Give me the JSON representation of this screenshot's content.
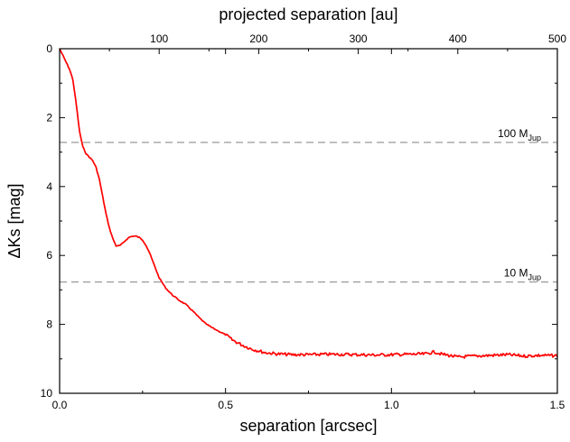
{
  "chart_data": {
    "type": "line",
    "title": "",
    "xlabel": "separation [arcsec]",
    "x2label": "projected separation [au]",
    "ylabel": "ΔKs [mag]",
    "xlim": [
      0,
      1.5
    ],
    "x2lim": [
      0,
      500
    ],
    "ylim": [
      0,
      10
    ],
    "y_inverted": true,
    "grid": false,
    "x_ticks": [
      "0.0",
      "0.5",
      "1.0",
      "1.5"
    ],
    "x2_ticks": [
      "100",
      "200",
      "300",
      "400",
      "500"
    ],
    "y_ticks": [
      "0",
      "2",
      "4",
      "6",
      "8",
      "10"
    ],
    "reference_lines": [
      {
        "y": 2.72,
        "label_main": "100 M",
        "label_sub": "Jup",
        "style": "dashed",
        "color": "#999999"
      },
      {
        "y": 6.77,
        "label_main": "10 M",
        "label_sub": "Jup",
        "style": "dashed",
        "color": "#999999"
      }
    ],
    "series": [
      {
        "color": "#ff0000",
        "x": [
          0.0,
          0.01,
          0.02,
          0.03,
          0.04,
          0.05,
          0.06,
          0.07,
          0.08,
          0.09,
          0.1,
          0.11,
          0.12,
          0.13,
          0.14,
          0.15,
          0.16,
          0.17,
          0.18,
          0.19,
          0.2,
          0.21,
          0.22,
          0.23,
          0.24,
          0.25,
          0.26,
          0.27,
          0.28,
          0.29,
          0.3,
          0.32,
          0.34,
          0.36,
          0.38,
          0.4,
          0.42,
          0.44,
          0.46,
          0.48,
          0.5,
          0.52,
          0.55,
          0.58,
          0.62,
          0.66,
          0.7,
          0.75,
          0.8,
          0.85,
          0.9,
          0.95,
          1.0,
          1.05,
          1.1,
          1.13,
          1.15,
          1.2,
          1.25,
          1.3,
          1.35,
          1.4,
          1.45,
          1.5
        ],
        "y": [
          0.0,
          0.2,
          0.4,
          0.6,
          0.9,
          1.6,
          2.4,
          2.85,
          3.05,
          3.15,
          3.25,
          3.45,
          3.8,
          4.3,
          4.8,
          5.2,
          5.5,
          5.72,
          5.72,
          5.65,
          5.55,
          5.47,
          5.44,
          5.44,
          5.48,
          5.55,
          5.7,
          5.9,
          6.15,
          6.4,
          6.65,
          6.95,
          7.15,
          7.3,
          7.42,
          7.6,
          7.8,
          7.98,
          8.1,
          8.2,
          8.3,
          8.45,
          8.6,
          8.72,
          8.82,
          8.86,
          8.88,
          8.88,
          8.87,
          8.87,
          8.88,
          8.89,
          8.88,
          8.87,
          8.86,
          8.8,
          8.86,
          8.95,
          8.92,
          8.9,
          8.88,
          8.92,
          8.9,
          8.91
        ]
      }
    ]
  }
}
